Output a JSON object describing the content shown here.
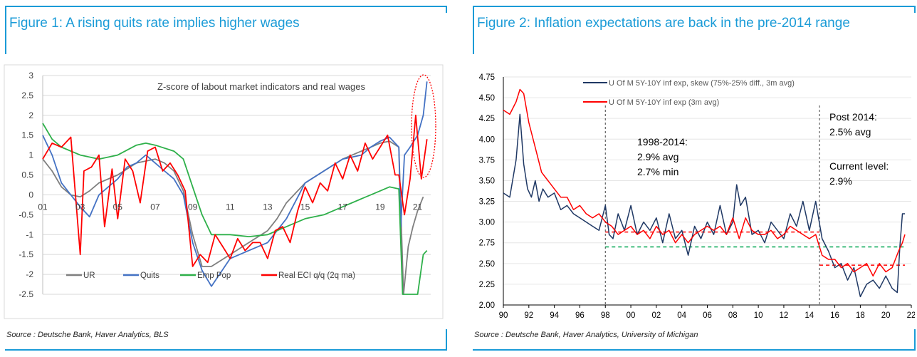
{
  "figure1": {
    "title": "Figure 1: A rising quits rate implies higher wages",
    "source": "Source : Deutsche Bank, Haver Analytics, BLS",
    "chart_data": {
      "type": "line",
      "title": "Z-score of labout market indicators and real wages",
      "ylim": [
        -2.5,
        3
      ],
      "yticks": [
        "3",
        "2.5",
        "2",
        "1.5",
        "1",
        "0.5",
        "0",
        "-0.5",
        "-1",
        "-1.5",
        "-2",
        "-2.5"
      ],
      "xlim": [
        2001,
        2021.7
      ],
      "xticks": [
        "01",
        "03",
        "05",
        "07",
        "09",
        "11",
        "13",
        "15",
        "17",
        "19",
        "21"
      ],
      "legend_position": "bottom",
      "annotation": "dotted red ellipse highlighting 2020-2021",
      "series": [
        {
          "name": "UR",
          "color": "#7f7f7f",
          "x": [
            2001,
            2001.5,
            2002,
            2002.5,
            2003,
            2003.5,
            2004,
            2005,
            2006,
            2007,
            2007.5,
            2008,
            2008.5,
            2009,
            2009.5,
            2010,
            2011,
            2012,
            2013,
            2013.5,
            2014,
            2015,
            2016,
            2017,
            2018,
            2019,
            2019.5,
            2020,
            2020.25,
            2020.5,
            2020.75,
            2021,
            2021.3
          ],
          "y": [
            0.9,
            0.6,
            0.2,
            0.0,
            -0.05,
            0.1,
            0.3,
            0.5,
            0.8,
            0.9,
            0.8,
            0.6,
            0.1,
            -1.0,
            -1.8,
            -1.8,
            -1.5,
            -1.2,
            -0.9,
            -0.6,
            -0.2,
            0.3,
            0.6,
            0.9,
            1.1,
            1.3,
            1.35,
            1.2,
            -2.5,
            -1.3,
            -0.8,
            -0.4,
            -0.05
          ]
        },
        {
          "name": "Quits",
          "color": "#4472c4",
          "x": [
            2001,
            2001.5,
            2002,
            2002.5,
            2003,
            2003.5,
            2004,
            2005,
            2005.5,
            2006,
            2006.5,
            2007,
            2007.5,
            2008,
            2008.5,
            2009,
            2009.5,
            2010,
            2011,
            2012,
            2013,
            2013.5,
            2014,
            2015,
            2016,
            2017,
            2018,
            2018.5,
            2019,
            2019.5,
            2020,
            2020.1,
            2020.3,
            2020.6,
            2021,
            2021.3,
            2021.5
          ],
          "y": [
            1.5,
            1.0,
            0.3,
            0.0,
            -0.3,
            -0.55,
            0.0,
            0.4,
            0.7,
            0.8,
            1.0,
            0.8,
            0.6,
            0.4,
            0.0,
            -1.2,
            -1.9,
            -2.3,
            -1.6,
            -1.4,
            -1.2,
            -0.9,
            -0.6,
            0.3,
            0.6,
            0.9,
            1.0,
            1.2,
            1.35,
            1.45,
            1.2,
            -0.8,
            1.0,
            1.2,
            1.5,
            2.0,
            2.85
          ]
        },
        {
          "name": "Emp Pop",
          "color": "#2eb04a",
          "x": [
            2001,
            2001.5,
            2002,
            2003,
            2004,
            2005,
            2006,
            2006.5,
            2007,
            2008,
            2008.5,
            2009,
            2009.5,
            2010,
            2011,
            2012,
            2013,
            2014,
            2015,
            2016,
            2017,
            2018,
            2019,
            2019.5,
            2020,
            2020.2,
            2020.5,
            2020.8,
            2021,
            2021.3,
            2021.5
          ],
          "y": [
            1.8,
            1.4,
            1.2,
            1.0,
            0.9,
            1.0,
            1.25,
            1.3,
            1.25,
            1.1,
            0.9,
            0.2,
            -0.5,
            -1.0,
            -1.0,
            -1.05,
            -1.0,
            -0.8,
            -0.6,
            -0.5,
            -0.3,
            -0.1,
            0.1,
            0.2,
            0.15,
            -2.5,
            -2.5,
            -2.5,
            -2.5,
            -1.5,
            -1.4
          ]
        },
        {
          "name": "Real ECI q/q (2q ma)",
          "color": "#ff0000",
          "x": [
            2001,
            2001.5,
            2002,
            2002.5,
            2003,
            2003.2,
            2003.6,
            2004,
            2004.3,
            2004.7,
            2005,
            2005.4,
            2005.8,
            2006.2,
            2006.6,
            2007,
            2007.4,
            2007.8,
            2008.2,
            2008.6,
            2009,
            2009.4,
            2009.8,
            2010.2,
            2010.6,
            2011,
            2011.4,
            2011.8,
            2012.2,
            2012.6,
            2013,
            2013.4,
            2013.8,
            2014.2,
            2014.6,
            2015,
            2015.4,
            2015.8,
            2016.2,
            2016.6,
            2017,
            2017.4,
            2017.8,
            2018.2,
            2018.6,
            2019,
            2019.4,
            2019.8,
            2020,
            2020.3,
            2020.6,
            2020.9,
            2021.2,
            2021.5
          ],
          "y": [
            0.9,
            1.3,
            1.2,
            1.45,
            -1.5,
            0.6,
            0.7,
            1.0,
            -0.8,
            0.65,
            -0.6,
            0.9,
            0.6,
            -0.2,
            1.1,
            1.2,
            0.6,
            0.8,
            0.5,
            0.1,
            -1.8,
            -1.5,
            -1.7,
            -1.0,
            -1.3,
            -1.6,
            -1.1,
            -1.4,
            -1.2,
            -1.2,
            -1.6,
            -0.9,
            -0.8,
            -1.2,
            -0.4,
            0.2,
            -0.2,
            0.3,
            0.1,
            0.8,
            0.4,
            1.0,
            0.6,
            1.3,
            0.9,
            1.2,
            1.5,
            0.5,
            0.5,
            -0.5,
            0.4,
            2.0,
            0.4,
            1.4
          ]
        }
      ]
    }
  },
  "figure2": {
    "title": "Figure 2: Inflation expectations are back in the pre-2014 range",
    "source": "Source : Deutsche Bank, Haver Analytics, University of Michigan",
    "chart_data": {
      "type": "line",
      "ylim": [
        2.0,
        4.75
      ],
      "yticks": [
        "4.75",
        "4.50",
        "4.25",
        "4.00",
        "3.75",
        "3.50",
        "3.25",
        "3.00",
        "2.75",
        "2.50",
        "2.25",
        "2.00"
      ],
      "xlim": [
        1990,
        2022
      ],
      "xticks": [
        "90",
        "92",
        "94",
        "96",
        "98",
        "00",
        "02",
        "04",
        "06",
        "08",
        "10",
        "12",
        "14",
        "16",
        "18",
        "20",
        "22"
      ],
      "legend_position": "top-left",
      "vertical_lines_at": [
        1998,
        2014.8
      ],
      "reference_lines": [
        {
          "color": "#00a651",
          "y": 2.7,
          "x": [
            1998,
            2021.5
          ]
        },
        {
          "color": "#ff0000",
          "y": 2.88,
          "x": [
            1998,
            2014.8
          ]
        },
        {
          "color": "#ff0000",
          "y": 2.48,
          "x": [
            2014.8,
            2021.5
          ]
        }
      ],
      "annotations": [
        {
          "lines": [
            "1998-2014:",
            "2.9% avg",
            "2.7% min"
          ]
        },
        {
          "lines": [
            "Post 2014:",
            "2.5% avg"
          ]
        },
        {
          "lines": [
            "Current level:",
            "2.9%"
          ]
        }
      ],
      "series": [
        {
          "name": "U Of M 5Y-10Y inf exp, skew (75%-25% diff., 3m avg)",
          "color": "#1f3864",
          "x": [
            1990,
            1990.5,
            1991,
            1991.3,
            1991.6,
            1991.9,
            1992.2,
            1992.5,
            1992.8,
            1993.1,
            1993.5,
            1994,
            1994.5,
            1995,
            1995.5,
            1996,
            1996.5,
            1997,
            1997.5,
            1998,
            1998.3,
            1998.6,
            1999,
            1999.5,
            2000,
            2000.5,
            2001,
            2001.5,
            2002,
            2002.5,
            2003,
            2003.5,
            2004,
            2004.5,
            2005,
            2005.5,
            2006,
            2006.5,
            2007,
            2007.5,
            2008,
            2008.3,
            2008.6,
            2009,
            2009.5,
            2010,
            2010.5,
            2011,
            2011.5,
            2012,
            2012.5,
            2013,
            2013.5,
            2014,
            2014.5,
            2015,
            2015.5,
            2016,
            2016.5,
            2017,
            2017.5,
            2018,
            2018.5,
            2019,
            2019.5,
            2020,
            2020.5,
            2020.9,
            2021.1,
            2021.3,
            2021.5
          ],
          "y": [
            3.35,
            3.3,
            3.75,
            4.3,
            3.7,
            3.4,
            3.3,
            3.5,
            3.25,
            3.4,
            3.3,
            3.35,
            3.15,
            3.2,
            3.1,
            3.05,
            3.0,
            2.95,
            2.9,
            3.2,
            2.85,
            2.8,
            3.1,
            2.9,
            3.2,
            2.85,
            3.0,
            2.9,
            3.05,
            2.75,
            3.1,
            2.8,
            2.9,
            2.6,
            2.95,
            2.8,
            3.0,
            2.85,
            3.2,
            2.85,
            3.0,
            3.45,
            3.2,
            3.3,
            2.85,
            2.9,
            2.75,
            3.0,
            2.9,
            2.8,
            3.1,
            2.95,
            3.25,
            2.9,
            3.25,
            2.8,
            2.65,
            2.45,
            2.5,
            2.3,
            2.45,
            2.1,
            2.25,
            2.3,
            2.2,
            2.35,
            2.2,
            2.15,
            2.7,
            3.1,
            3.1
          ]
        },
        {
          "name": "U Of M 5Y-10Y inf exp (3m avg)",
          "color": "#ff0000",
          "x": [
            1990,
            1990.5,
            1991,
            1991.3,
            1991.6,
            1992,
            1992.5,
            1993,
            1993.5,
            1994,
            1994.5,
            1995,
            1995.5,
            1996,
            1996.5,
            1997,
            1997.5,
            1998,
            1998.5,
            1999,
            1999.5,
            2000,
            2000.5,
            2001,
            2001.5,
            2002,
            2002.5,
            2003,
            2003.5,
            2004,
            2004.5,
            2005,
            2005.5,
            2006,
            2006.5,
            2007,
            2007.5,
            2008,
            2008.5,
            2009,
            2009.5,
            2010,
            2010.5,
            2011,
            2011.5,
            2012,
            2012.5,
            2013,
            2013.5,
            2014,
            2014.5,
            2015,
            2015.5,
            2016,
            2016.5,
            2017,
            2017.5,
            2018,
            2018.5,
            2019,
            2019.5,
            2020,
            2020.5,
            2021,
            2021.3,
            2021.5
          ],
          "y": [
            4.35,
            4.3,
            4.45,
            4.6,
            4.55,
            4.2,
            3.9,
            3.6,
            3.5,
            3.4,
            3.3,
            3.3,
            3.15,
            3.2,
            3.1,
            3.05,
            3.1,
            3.0,
            2.95,
            2.85,
            2.9,
            2.95,
            2.85,
            2.9,
            2.8,
            2.95,
            2.85,
            2.9,
            2.75,
            2.85,
            2.75,
            2.85,
            2.9,
            2.95,
            2.9,
            2.95,
            2.85,
            3.05,
            2.8,
            3.05,
            2.9,
            2.85,
            2.85,
            2.9,
            2.8,
            2.85,
            2.95,
            2.9,
            2.85,
            2.8,
            2.85,
            2.6,
            2.55,
            2.55,
            2.45,
            2.5,
            2.4,
            2.45,
            2.5,
            2.35,
            2.5,
            2.4,
            2.45,
            2.65,
            2.75,
            2.85
          ]
        }
      ]
    }
  }
}
